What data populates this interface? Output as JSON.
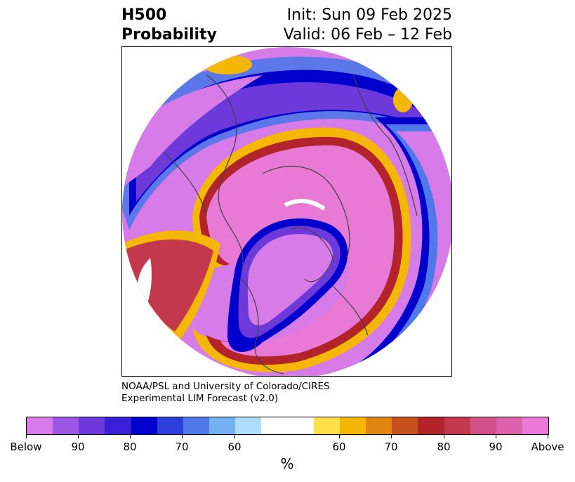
{
  "header": {
    "title_line1": "H500",
    "title_line2": "Probability",
    "init_text": "Init: Sun 09 Feb 2025",
    "valid_text": "Valid: 06 Feb – 12 Feb"
  },
  "credit": {
    "line1": "NOAA/PSL and University of Colorado/CIRES",
    "line2": "Experimental LIM Forecast (v2.0)"
  },
  "colorbar": {
    "unit": "%",
    "colors": [
      "#d77be8",
      "#9d57e2",
      "#6d39db",
      "#3b1fd6",
      "#0000cc",
      "#2f3fdc",
      "#4f78e8",
      "#74b1f4",
      "#aedcfb",
      "#ffffff",
      "#ffffff",
      "#ffe048",
      "#f5b705",
      "#e08510",
      "#c4521a",
      "#b2232b",
      "#c4384e",
      "#d15087",
      "#dc62ad",
      "#e87ad6"
    ],
    "tick_labels": [
      "Below",
      "90",
      "80",
      "70",
      "60",
      "60",
      "70",
      "80",
      "90",
      "Above"
    ]
  }
}
